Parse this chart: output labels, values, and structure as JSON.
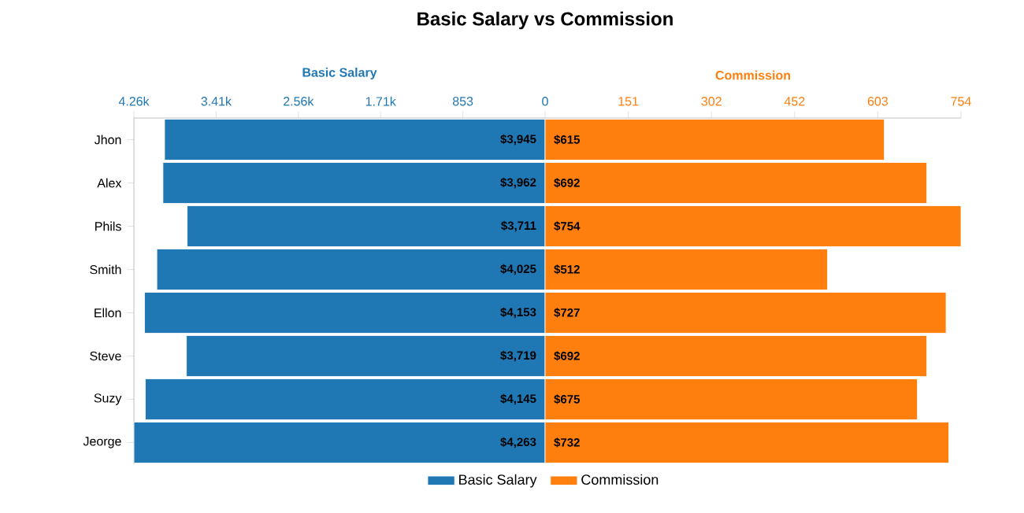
{
  "chart_data": [
    {
      "type": "bar",
      "orientation": "horizontal",
      "title": "Basic Salary vs Commission",
      "xlabel": "Basic Salary",
      "categories": [
        "Jhon",
        "Alex",
        "Phils",
        "Smith",
        "Ellon",
        "Steve",
        "Suzy",
        "Jeorge"
      ],
      "series": [
        {
          "name": "Basic Salary",
          "color": "#1f77b4",
          "values": [
            3945,
            3962,
            3711,
            4025,
            4153,
            3719,
            4145,
            4263
          ],
          "value_labels": [
            "$3,945",
            "$3,962",
            "$3,711",
            "$4,025",
            "$4,153",
            "$3,719",
            "$4,145",
            "$4,263"
          ]
        }
      ],
      "xlim": [
        4263,
        0
      ],
      "xticks": [
        {
          "value": 4263,
          "label": "4.26k"
        },
        {
          "value": 3410.4,
          "label": "3.41k"
        },
        {
          "value": 2557.8,
          "label": "2.56k"
        },
        {
          "value": 1705.2,
          "label": "1.71k"
        },
        {
          "value": 852.6,
          "label": "853"
        },
        0
      ],
      "legend": "bottom"
    },
    {
      "type": "bar",
      "orientation": "horizontal",
      "xlabel": "Commission",
      "categories": [
        null,
        null,
        null,
        null,
        null,
        null,
        null,
        null
      ],
      "series": [
        {
          "name": "Commission",
          "color": "#ff7f0e",
          "values": [
            615,
            692,
            754,
            512,
            727,
            692,
            675,
            732
          ],
          "value_labels": [
            "$615",
            "$692",
            "$754",
            "$512",
            "$727",
            "$692",
            "$675",
            "$732"
          ]
        }
      ],
      "xlim": [
        0,
        754
      ],
      "xticks": [
        {
          "value": 150.8,
          "label": "151"
        },
        {
          "value": 301.6,
          "label": "302"
        },
        {
          "value": 452.4,
          "label": "452"
        },
        {
          "value": 603.2,
          "label": "603"
        },
        {
          "value": 754,
          "label": "754"
        }
      ],
      "legend": "bottom",
      "tick_labels": "x"
    }
  ]
}
